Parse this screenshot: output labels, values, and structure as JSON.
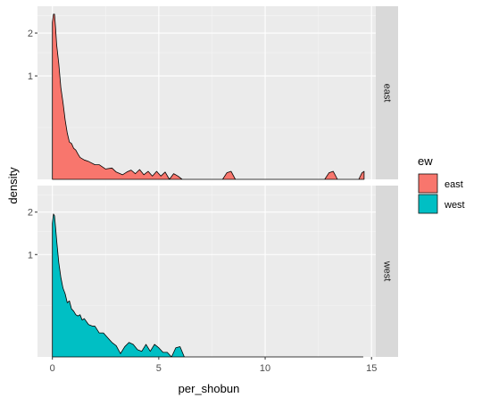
{
  "chart_data": {
    "type": "area",
    "xlabel": "per_shobun",
    "ylabel": "density",
    "xlim": [
      -0.7,
      15.2
    ],
    "x_ticks": [
      0,
      5,
      10,
      15
    ],
    "x_tick_labels": [
      "0",
      "5",
      "10",
      "15"
    ],
    "y_ticks": [
      1,
      2
    ],
    "y_tick_labels": [
      "1",
      "2"
    ],
    "y_scale": "sqrt",
    "ylim": [
      0,
      2.8
    ],
    "grid": true,
    "facet_variable": "ew",
    "facets": [
      "east",
      "west"
    ],
    "legend": {
      "title": "ew",
      "position": "right",
      "entries": [
        "east",
        "west"
      ]
    },
    "series": [
      {
        "name": "east",
        "color": "#F8766D",
        "x": [
          0,
          0.05,
          0.1,
          0.15,
          0.2,
          0.3,
          0.4,
          0.5,
          0.6,
          0.7,
          0.8,
          0.9,
          1.0,
          1.1,
          1.2,
          1.3,
          1.5,
          1.7,
          2.0,
          2.2,
          2.5,
          2.8,
          3.0,
          3.3,
          3.5,
          3.7,
          3.9,
          4.1,
          4.3,
          4.5,
          4.7,
          4.9,
          5.1,
          5.3,
          5.5,
          5.7,
          5.9,
          6.1,
          6.5,
          7.0,
          7.5,
          8.0,
          8.2,
          8.4,
          8.6,
          9.0,
          10.0,
          11.0,
          12.0,
          12.8,
          13.0,
          13.2,
          13.4,
          14.0,
          14.4,
          14.55,
          14.65
        ],
        "y": [
          2.3,
          2.55,
          2.55,
          2.15,
          1.7,
          1.25,
          0.78,
          0.55,
          0.33,
          0.2,
          0.13,
          0.12,
          0.09,
          0.08,
          0.06,
          0.045,
          0.035,
          0.03,
          0.02,
          0.02,
          0.01,
          0.012,
          0.005,
          0.002,
          0.005,
          0.008,
          0.003,
          0.009,
          0.002,
          0.006,
          0.001,
          0.006,
          0.001,
          0.005,
          0,
          0.003,
          0.001,
          0,
          0,
          0,
          0,
          0,
          0.004,
          0.006,
          0,
          0,
          0,
          0,
          0,
          0,
          0.004,
          0.006,
          0,
          0,
          0,
          0.004,
          0.006
        ]
      },
      {
        "name": "west",
        "color": "#00BFC4",
        "x": [
          0,
          0.05,
          0.1,
          0.15,
          0.2,
          0.3,
          0.4,
          0.5,
          0.6,
          0.7,
          0.8,
          0.9,
          1.0,
          1.1,
          1.2,
          1.3,
          1.4,
          1.5,
          1.7,
          1.9,
          2.0,
          2.2,
          2.4,
          2.6,
          2.8,
          3.0,
          3.2,
          3.4,
          3.6,
          3.8,
          4.0,
          4.2,
          4.4,
          4.6,
          4.8,
          5.0,
          5.2,
          5.4,
          5.6,
          5.8,
          6.0,
          6.2,
          7.0,
          8.0,
          9.0,
          10.0,
          11.0,
          12.0,
          13.0,
          14.0,
          14.6
        ],
        "y": [
          1.7,
          1.95,
          1.9,
          1.6,
          1.3,
          0.85,
          0.6,
          0.45,
          0.38,
          0.28,
          0.3,
          0.22,
          0.2,
          0.17,
          0.16,
          0.17,
          0.13,
          0.14,
          0.1,
          0.09,
          0.09,
          0.055,
          0.055,
          0.035,
          0.02,
          0.012,
          0.001,
          0.01,
          0.02,
          0.015,
          0.005,
          0.003,
          0.015,
          0.003,
          0.015,
          0.008,
          0.002,
          0.002,
          0,
          0.008,
          0.01,
          0,
          0,
          0,
          0,
          0,
          0,
          0,
          0,
          0,
          0
        ]
      }
    ]
  }
}
